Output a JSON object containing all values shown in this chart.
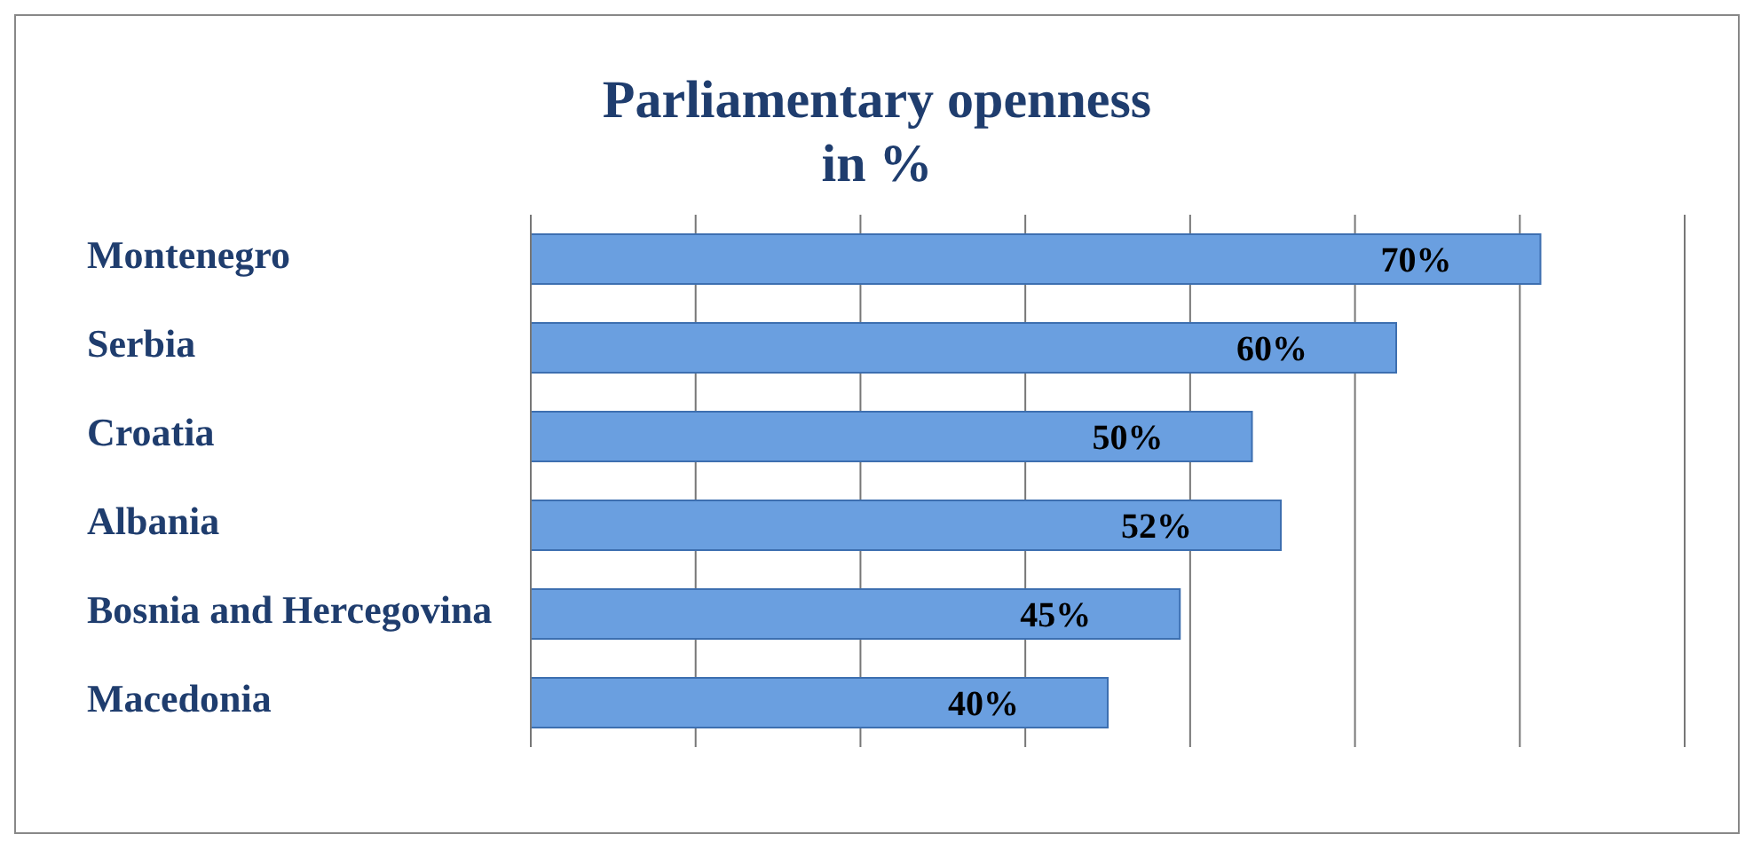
{
  "chart_data": {
    "type": "bar",
    "orientation": "horizontal",
    "title": "Parliamentary openness in %",
    "categories": [
      "Montenegro",
      "Serbia",
      "Croatia",
      "Albania",
      "Bosnia and Hercegovina",
      "Macedonia"
    ],
    "values": [
      70,
      60,
      50,
      52,
      45,
      40
    ],
    "value_labels": [
      "70%",
      "60%",
      "50%",
      "52%",
      "45%",
      "40%"
    ],
    "color": "#6a9fe0",
    "xlim": [
      0,
      80
    ],
    "grid": "x",
    "tick_labels": "y"
  }
}
